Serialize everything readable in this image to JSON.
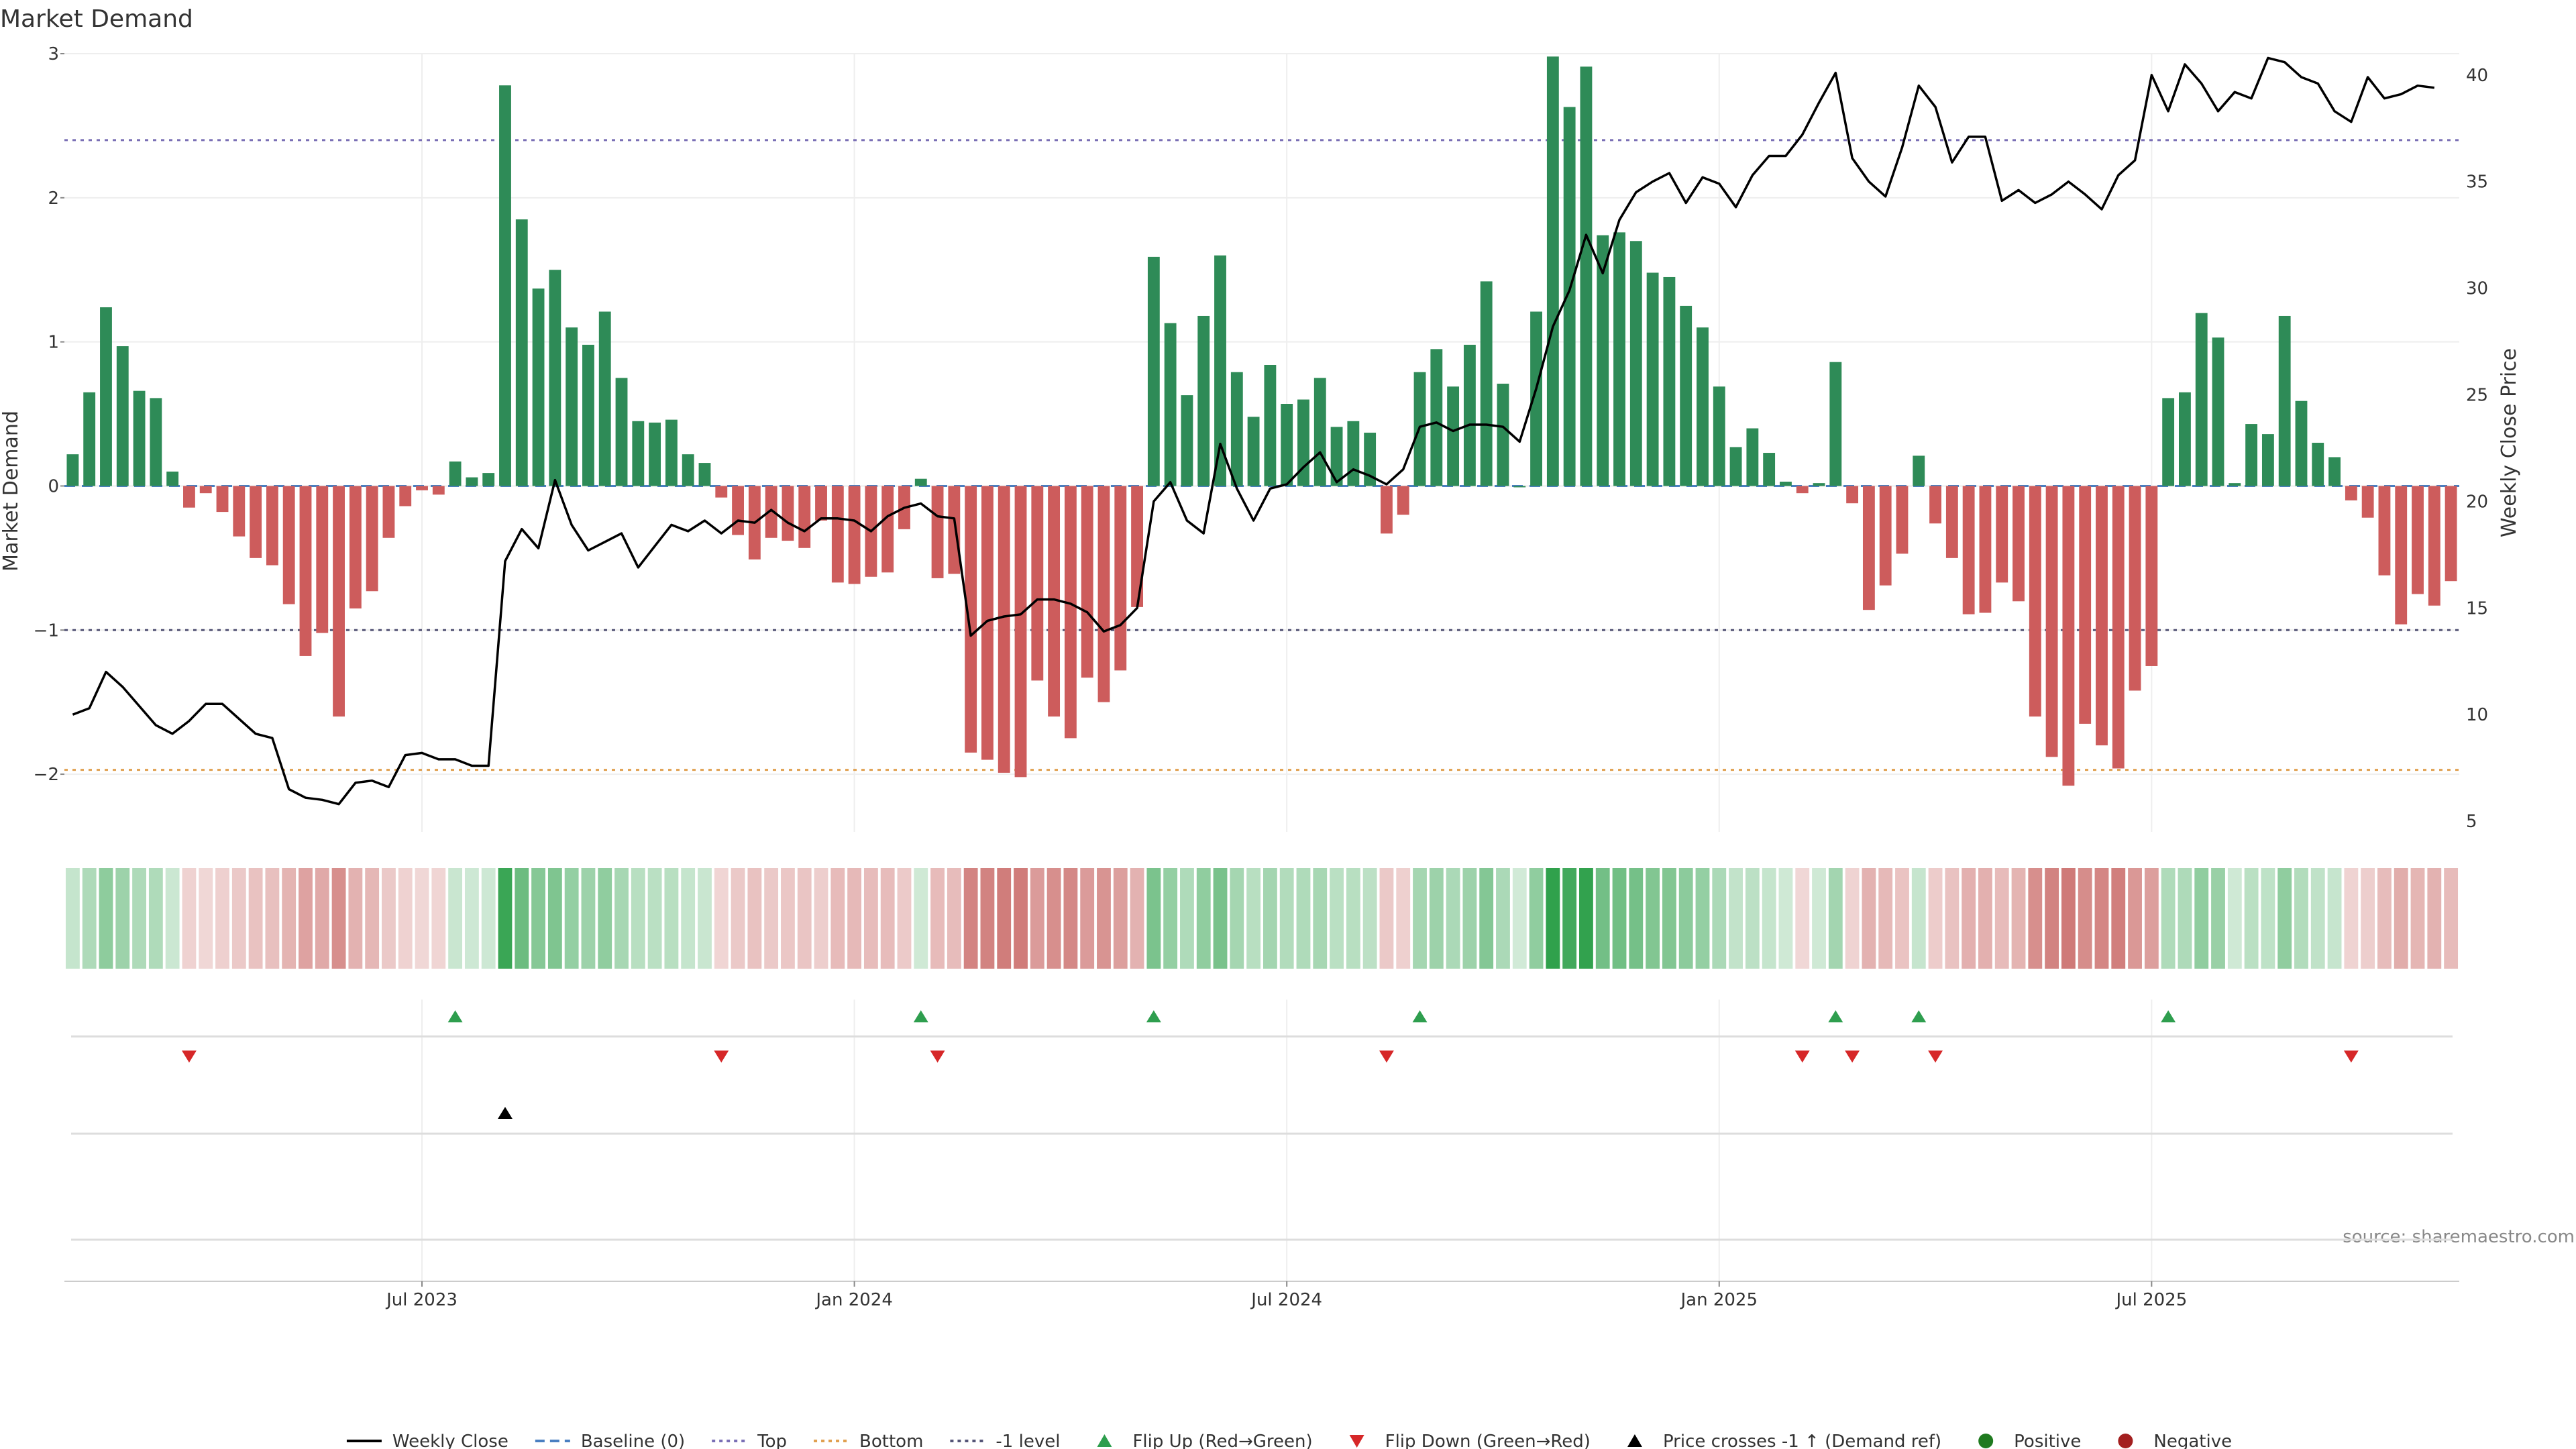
{
  "chart_data": {
    "type": "bar",
    "title": "Market Demand",
    "ylabel": "Market Demand",
    "y2label": "Weekly Close Price",
    "ylim": [
      -2.4,
      3.0
    ],
    "y2lim": [
      4.5,
      41.0
    ],
    "yticks": [
      -2,
      -1,
      0,
      1,
      2,
      3
    ],
    "yticklabels": [
      "−2",
      "−1",
      "0",
      "1",
      "2",
      "3"
    ],
    "y2ticks": [
      5,
      10,
      15,
      20,
      25,
      30,
      35,
      40
    ],
    "xticks": [
      {
        "label": "Jul 2023",
        "week": 21
      },
      {
        "label": "Jan 2024",
        "week": 47
      },
      {
        "label": "Jul 2024",
        "week": 73
      },
      {
        "label": "Jan 2025",
        "week": 99
      },
      {
        "label": "Jul 2025",
        "week": 125
      }
    ],
    "reference_lines": {
      "baseline": 0,
      "top": 2.4,
      "bottom": -1.97,
      "minus_one": -1
    },
    "demand": [
      0.22,
      0.65,
      1.24,
      0.97,
      0.66,
      0.61,
      0.1,
      -0.15,
      -0.05,
      -0.18,
      -0.35,
      -0.5,
      -0.55,
      -0.82,
      -1.18,
      -1.02,
      -1.6,
      -0.85,
      -0.73,
      -0.36,
      -0.14,
      -0.03,
      -0.06,
      0.17,
      0.06,
      0.09,
      2.78,
      1.85,
      1.37,
      1.5,
      1.1,
      0.98,
      1.21,
      0.75,
      0.45,
      0.44,
      0.46,
      0.22,
      0.16,
      -0.08,
      -0.34,
      -0.51,
      -0.36,
      -0.38,
      -0.43,
      -0.24,
      -0.67,
      -0.68,
      -0.63,
      -0.6,
      -0.3,
      0.05,
      -0.64,
      -0.61,
      -1.85,
      -1.9,
      -1.99,
      -2.02,
      -1.35,
      -1.6,
      -1.75,
      -1.33,
      -1.5,
      -1.28,
      -0.84,
      1.59,
      1.13,
      0.63,
      1.18,
      1.6,
      0.79,
      0.48,
      0.84,
      0.57,
      0.6,
      0.75,
      0.41,
      0.45,
      0.37,
      -0.33,
      -0.2,
      0.79,
      0.95,
      0.69,
      0.98,
      1.42,
      0.71,
      0.0,
      1.21,
      2.98,
      2.63,
      2.91,
      1.74,
      1.76,
      1.7,
      1.48,
      1.45,
      1.25,
      1.1,
      0.69,
      0.27,
      0.4,
      0.23,
      0.03,
      -0.05,
      0.02,
      0.86,
      -0.12,
      -0.86,
      -0.69,
      -0.47,
      0.21,
      -0.26,
      -0.5,
      -0.89,
      -0.88,
      -0.67,
      -0.8,
      -1.6,
      -1.88,
      -2.08,
      -1.65,
      -1.8,
      -1.96,
      -1.42,
      -1.25,
      0.61,
      0.65,
      1.2,
      1.03,
      0.02,
      0.43,
      0.36,
      1.18,
      0.59,
      0.3,
      0.2,
      -0.1,
      -0.22,
      -0.62,
      -0.96,
      -0.75,
      -0.83,
      -0.66
    ],
    "weekly_close": [
      10.0,
      10.3,
      12.0,
      11.3,
      10.4,
      9.5,
      9.1,
      9.7,
      10.5,
      10.5,
      9.8,
      9.1,
      8.9,
      6.5,
      6.1,
      6.0,
      5.8,
      6.8,
      6.9,
      6.6,
      8.1,
      8.2,
      7.9,
      7.9,
      7.6,
      7.6,
      17.2,
      18.7,
      17.8,
      21.0,
      18.9,
      17.7,
      18.1,
      18.5,
      16.9,
      17.9,
      18.9,
      18.6,
      19.1,
      18.5,
      19.1,
      19.0,
      19.6,
      19.0,
      18.6,
      19.2,
      19.2,
      19.1,
      18.6,
      19.3,
      19.7,
      19.9,
      19.3,
      19.2,
      13.7,
      14.4,
      14.6,
      14.7,
      15.4,
      15.4,
      15.2,
      14.8,
      13.9,
      14.2,
      15.0,
      20.0,
      20.9,
      19.1,
      18.5,
      22.7,
      20.6,
      19.1,
      20.6,
      20.8,
      21.6,
      22.3,
      20.9,
      21.5,
      21.2,
      20.8,
      21.5,
      23.5,
      23.7,
      23.3,
      23.6,
      23.6,
      23.5,
      22.8,
      25.3,
      28.2,
      29.9,
      32.5,
      30.7,
      33.2,
      34.5,
      35.0,
      35.4,
      34.0,
      35.2,
      34.9,
      33.8,
      35.3,
      36.2,
      36.2,
      37.2,
      38.7,
      40.1,
      36.1,
      35.0,
      34.3,
      36.6,
      39.5,
      38.5,
      35.9,
      37.1,
      37.1,
      34.1,
      34.6,
      34.0,
      34.4,
      35.0,
      34.4,
      33.7,
      35.3,
      36.0,
      40.0,
      38.3,
      40.5,
      39.6,
      38.3,
      39.2,
      38.9,
      40.8,
      40.6,
      39.9,
      39.6,
      38.3,
      37.8,
      39.9,
      38.9,
      39.1,
      39.5,
      39.4
    ],
    "flip_up_weeks": [
      23,
      51,
      65,
      81,
      106,
      111,
      126
    ],
    "flip_down_weeks": [
      7,
      39,
      52,
      79,
      104,
      107,
      112,
      137
    ],
    "price_cross_weeks": [
      26
    ],
    "source": "source: sharemaestro.com",
    "legend": [
      {
        "label": "Weekly Close",
        "symbol": "line",
        "color": "#000000"
      },
      {
        "label": "Baseline (0)",
        "symbol": "dash",
        "color": "#4a7fc1"
      },
      {
        "label": "Top",
        "symbol": "dot",
        "color": "#7a6fb5"
      },
      {
        "label": "Bottom",
        "symbol": "dot",
        "color": "#e0a050"
      },
      {
        "label": "-1 level",
        "symbol": "dot",
        "color": "#555577"
      },
      {
        "label": "Flip Up (Red→Green)",
        "symbol": "triangle-up",
        "color": "#2e9e4e"
      },
      {
        "label": "Flip Down (Green→Red)",
        "symbol": "triangle-down",
        "color": "#d62728"
      },
      {
        "label": "Price crosses -1 ↑ (Demand ref)",
        "symbol": "triangle-up",
        "color": "#000000"
      },
      {
        "label": "Positive",
        "symbol": "circle",
        "color": "#1f7a1f"
      },
      {
        "label": "Negative",
        "symbol": "circle",
        "color": "#a31f1f"
      }
    ],
    "colors": {
      "positive": "#2e8b57",
      "negative": "#cd5c5c",
      "price": "#000000"
    }
  }
}
